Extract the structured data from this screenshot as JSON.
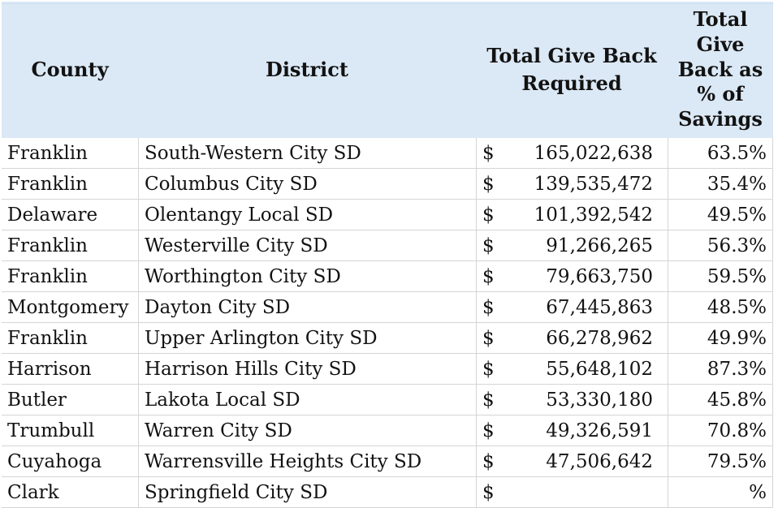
{
  "colors": {
    "header_background": "#DBE8F5",
    "gridline": "#d5d5d5",
    "text": "#121212"
  },
  "table": {
    "currency_symbol": "$",
    "header": {
      "county": "County",
      "district": "District",
      "amount_lines": [
        "Total Give Back",
        "Required"
      ],
      "pct_lines": [
        "Total",
        "Give",
        "Back as",
        "% of",
        "Savings"
      ]
    },
    "rows": [
      {
        "county": "Franklin",
        "district": "South-Western City SD",
        "amount": "165,022,638",
        "pct": "63.5%"
      },
      {
        "county": "Franklin",
        "district": "Columbus City SD",
        "amount": "139,535,472",
        "pct": "35.4%"
      },
      {
        "county": "Delaware",
        "district": "Olentangy Local SD",
        "amount": "101,392,542",
        "pct": "49.5%"
      },
      {
        "county": "Franklin",
        "district": "Westerville City SD",
        "amount": "91,266,265",
        "pct": "56.3%"
      },
      {
        "county": "Franklin",
        "district": "Worthington City SD",
        "amount": "79,663,750",
        "pct": "59.5%"
      },
      {
        "county": "Montgomery",
        "district": "Dayton City SD",
        "amount": "67,445,863",
        "pct": "48.5%"
      },
      {
        "county": "Franklin",
        "district": "Upper Arlington City SD",
        "amount": "66,278,962",
        "pct": "49.9%"
      },
      {
        "county": "Harrison",
        "district": "Harrison Hills City SD",
        "amount": "55,648,102",
        "pct": "87.3%"
      },
      {
        "county": "Butler",
        "district": "Lakota Local SD",
        "amount": "53,330,180",
        "pct": "45.8%"
      },
      {
        "county": "Trumbull",
        "district": "Warren City SD",
        "amount": "49,326,591",
        "pct": "70.8%"
      },
      {
        "county": "Cuyahoga",
        "district": "Warrensville Heights City SD",
        "amount": "47,506,642",
        "pct": "79.5%"
      },
      {
        "county": "Clark",
        "district": "Springfield City SD",
        "amount": "",
        "pct": "%"
      }
    ]
  }
}
